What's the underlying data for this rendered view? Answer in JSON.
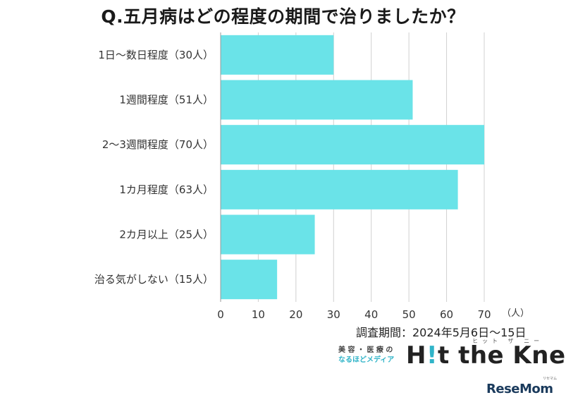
{
  "title": "Q.五月病はどの程度の期間で治りましたか？",
  "survey_period": "調査期間：2024年5月6日～15日",
  "brand": {
    "tagline_line1": "美 容 ・ 医 療 の",
    "tagline_line2": "なるほどメディア",
    "name_prefix": "H",
    "name_bang": "!",
    "name_rest": "t the Knee",
    "ruby": "ヒット ザ ニー"
  },
  "source": {
    "name": "ReseMom",
    "ruby": "リセマム"
  },
  "colors": {
    "bar": "#6ae3e8",
    "grid": "#d0d0d0",
    "axis": "#999999"
  },
  "chart_data": {
    "type": "bar",
    "orientation": "horizontal",
    "categories": [
      "1日～数日程度（30人）",
      "1週間程度（51人）",
      "2～3週間程度（70人）",
      "1カ月程度（63人）",
      "2カ月以上（25人）",
      "治る気がしない（15人）"
    ],
    "values": [
      30,
      51,
      70,
      63,
      25,
      15
    ],
    "xlim": [
      0,
      70
    ],
    "xticks": [
      0,
      10,
      20,
      30,
      40,
      50,
      60,
      70
    ],
    "xunit": "（人）",
    "grid": true
  }
}
